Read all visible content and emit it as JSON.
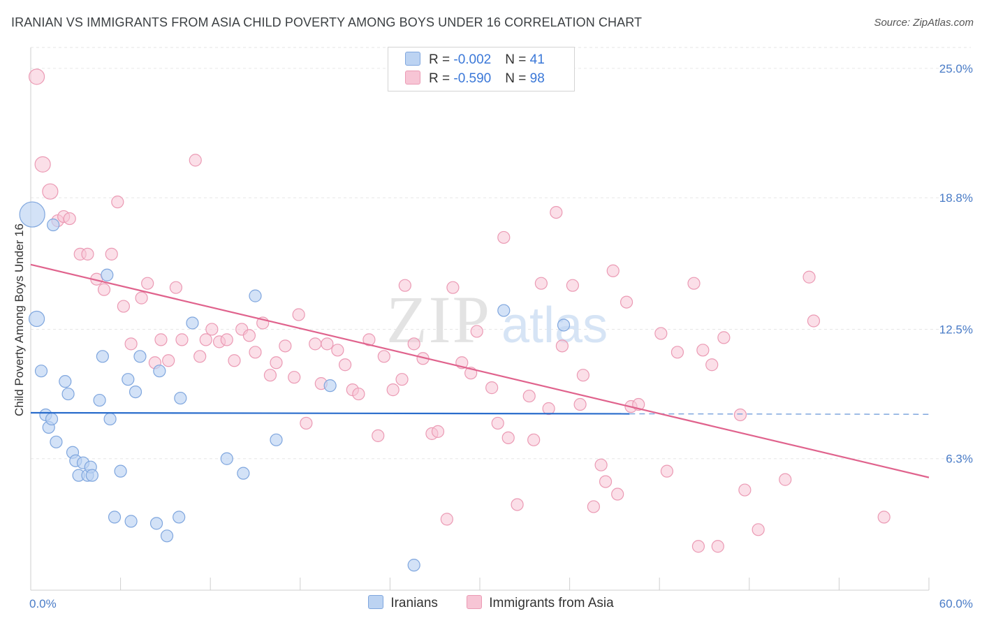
{
  "title": "IRANIAN VS IMMIGRANTS FROM ASIA CHILD POVERTY AMONG BOYS UNDER 16 CORRELATION CHART",
  "source": "Source: ZipAtlas.com",
  "watermark": {
    "zip": "ZIP",
    "atlas": "atlas"
  },
  "legend": {
    "rows": [
      {
        "r_label": "R = ",
        "r_value": "-0.002",
        "n_label": "N = ",
        "n_value": "41"
      },
      {
        "r_label": "R = ",
        "r_value": "-0.590",
        "n_label": "N = ",
        "n_value": "98"
      }
    ],
    "bottom": [
      "Iranians",
      "Immigrants from Asia"
    ]
  },
  "colors": {
    "blue_fill": "#bcd3f2",
    "blue_edge": "#7fa6de",
    "blue_line": "#2a6dcc",
    "pink_fill": "#f7c5d5",
    "pink_edge": "#eb9ab4",
    "pink_line": "#e0638d",
    "tick_text": "#4a7cc7",
    "grid": "#e6e6e6"
  },
  "chart_data": {
    "type": "scatter",
    "title": "IRANIAN VS IMMIGRANTS FROM ASIA CHILD POVERTY AMONG BOYS UNDER 16 CORRELATION CHART",
    "xlabel": "",
    "ylabel": "Child Poverty Among Boys Under 16",
    "xlim": [
      0,
      60
    ],
    "ylim": [
      0,
      26
    ],
    "y_ticks": [
      6.3,
      12.5,
      18.8,
      25.0
    ],
    "y_tick_labels": [
      "6.3%",
      "12.5%",
      "18.8%",
      "25.0%"
    ],
    "x_tick_labels": [
      "0.0%",
      "60.0%"
    ],
    "grid": true,
    "legend_position": "top-center",
    "series": [
      {
        "name": "Iranians",
        "color": "#bcd3f2",
        "points": [
          [
            0.1,
            18.0
          ],
          [
            0.4,
            13.0
          ],
          [
            0.7,
            10.5
          ],
          [
            1.0,
            8.4
          ],
          [
            1.2,
            7.8
          ],
          [
            1.4,
            8.2
          ],
          [
            1.5,
            17.5
          ],
          [
            1.7,
            7.1
          ],
          [
            2.3,
            10.0
          ],
          [
            2.5,
            9.4
          ],
          [
            2.8,
            6.6
          ],
          [
            3.0,
            6.2
          ],
          [
            3.2,
            5.5
          ],
          [
            3.5,
            6.1
          ],
          [
            3.8,
            5.5
          ],
          [
            4.0,
            5.9
          ],
          [
            4.1,
            5.5
          ],
          [
            4.6,
            9.1
          ],
          [
            4.8,
            11.2
          ],
          [
            5.1,
            15.1
          ],
          [
            5.3,
            8.2
          ],
          [
            5.6,
            3.5
          ],
          [
            6.0,
            5.7
          ],
          [
            6.5,
            10.1
          ],
          [
            6.7,
            3.3
          ],
          [
            7.0,
            9.5
          ],
          [
            7.3,
            11.2
          ],
          [
            8.4,
            3.2
          ],
          [
            8.6,
            10.5
          ],
          [
            9.1,
            2.6
          ],
          [
            9.9,
            3.5
          ],
          [
            10.0,
            9.2
          ],
          [
            10.8,
            12.8
          ],
          [
            13.1,
            6.3
          ],
          [
            14.2,
            5.6
          ],
          [
            15.0,
            14.1
          ],
          [
            16.4,
            7.2
          ],
          [
            20.0,
            9.8
          ],
          [
            25.6,
            1.2
          ],
          [
            31.6,
            13.4
          ],
          [
            35.6,
            12.7
          ]
        ]
      },
      {
        "name": "Immigrants from Asia",
        "color": "#f7c5d5",
        "points": [
          [
            0.4,
            24.6
          ],
          [
            0.8,
            20.4
          ],
          [
            1.3,
            19.1
          ],
          [
            1.8,
            17.7
          ],
          [
            2.2,
            17.9
          ],
          [
            2.6,
            17.8
          ],
          [
            3.3,
            16.1
          ],
          [
            3.8,
            16.1
          ],
          [
            4.4,
            14.9
          ],
          [
            4.9,
            14.4
          ],
          [
            5.4,
            16.1
          ],
          [
            5.8,
            18.6
          ],
          [
            6.2,
            13.6
          ],
          [
            6.7,
            11.8
          ],
          [
            7.4,
            14.0
          ],
          [
            7.8,
            14.7
          ],
          [
            8.3,
            10.9
          ],
          [
            8.7,
            12.0
          ],
          [
            9.2,
            11.0
          ],
          [
            9.7,
            14.5
          ],
          [
            10.1,
            12.0
          ],
          [
            11.0,
            20.6
          ],
          [
            11.3,
            11.2
          ],
          [
            11.7,
            12.0
          ],
          [
            12.1,
            12.5
          ],
          [
            12.6,
            11.9
          ],
          [
            13.1,
            12.0
          ],
          [
            13.6,
            11.0
          ],
          [
            14.1,
            12.5
          ],
          [
            14.6,
            12.2
          ],
          [
            15.0,
            11.4
          ],
          [
            15.5,
            12.8
          ],
          [
            16.0,
            10.3
          ],
          [
            16.4,
            10.9
          ],
          [
            17.0,
            11.7
          ],
          [
            17.6,
            10.2
          ],
          [
            17.9,
            13.2
          ],
          [
            18.4,
            8.0
          ],
          [
            19.0,
            11.8
          ],
          [
            19.4,
            9.9
          ],
          [
            19.8,
            11.8
          ],
          [
            20.5,
            11.5
          ],
          [
            21.0,
            10.8
          ],
          [
            21.5,
            9.6
          ],
          [
            21.9,
            9.4
          ],
          [
            22.6,
            12.0
          ],
          [
            23.2,
            7.4
          ],
          [
            23.6,
            11.2
          ],
          [
            24.2,
            9.6
          ],
          [
            24.8,
            10.1
          ],
          [
            25.0,
            14.6
          ],
          [
            25.6,
            11.8
          ],
          [
            26.2,
            11.1
          ],
          [
            26.8,
            7.5
          ],
          [
            27.2,
            7.6
          ],
          [
            27.8,
            3.4
          ],
          [
            28.2,
            14.5
          ],
          [
            28.8,
            10.9
          ],
          [
            29.4,
            10.4
          ],
          [
            29.8,
            12.4
          ],
          [
            30.8,
            9.7
          ],
          [
            31.2,
            8.0
          ],
          [
            31.6,
            16.9
          ],
          [
            31.9,
            7.3
          ],
          [
            32.5,
            4.1
          ],
          [
            33.3,
            9.3
          ],
          [
            33.6,
            7.2
          ],
          [
            34.1,
            14.7
          ],
          [
            34.6,
            8.7
          ],
          [
            35.1,
            18.1
          ],
          [
            35.5,
            11.7
          ],
          [
            36.2,
            14.6
          ],
          [
            36.7,
            8.9
          ],
          [
            36.9,
            10.3
          ],
          [
            37.6,
            4.0
          ],
          [
            38.1,
            6.0
          ],
          [
            38.4,
            5.2
          ],
          [
            38.9,
            15.3
          ],
          [
            39.2,
            4.6
          ],
          [
            39.8,
            13.8
          ],
          [
            40.1,
            8.8
          ],
          [
            40.6,
            8.9
          ],
          [
            42.1,
            12.3
          ],
          [
            42.5,
            5.7
          ],
          [
            43.2,
            11.4
          ],
          [
            44.3,
            14.7
          ],
          [
            44.6,
            2.1
          ],
          [
            44.9,
            11.5
          ],
          [
            45.5,
            10.8
          ],
          [
            45.9,
            2.1
          ],
          [
            46.3,
            12.1
          ],
          [
            47.4,
            8.4
          ],
          [
            47.7,
            4.8
          ],
          [
            48.6,
            2.9
          ],
          [
            50.4,
            5.3
          ],
          [
            52.0,
            15.0
          ],
          [
            52.3,
            12.9
          ],
          [
            57.0,
            3.5
          ]
        ]
      }
    ],
    "trendlines": [
      {
        "series": "Iranians",
        "x": [
          0,
          40
        ],
        "y": [
          8.5,
          8.45
        ],
        "dashed_to_x": 60
      },
      {
        "series": "Immigrants from Asia",
        "x": [
          0,
          60
        ],
        "y": [
          15.6,
          5.4
        ]
      }
    ]
  }
}
